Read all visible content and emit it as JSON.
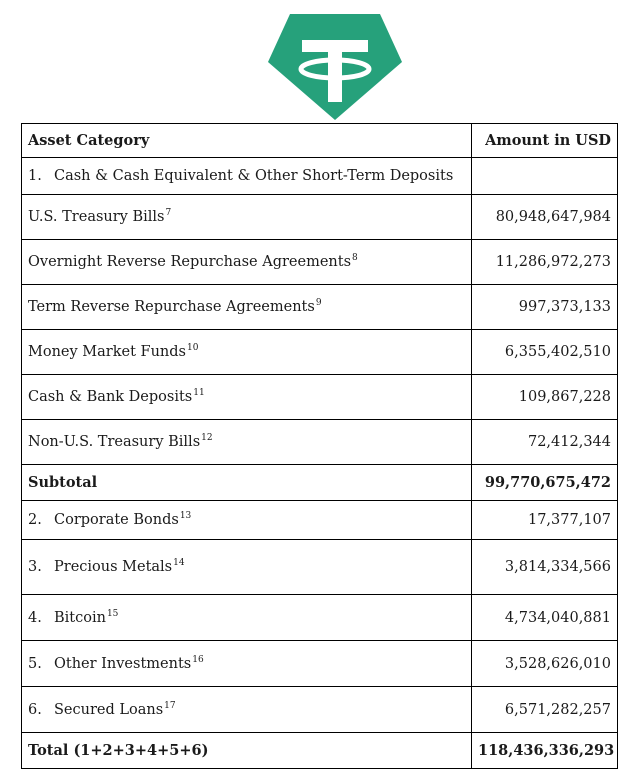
{
  "header": {
    "logo_icon": "tether-logo-icon",
    "logo_color": "#26A17B"
  },
  "table": {
    "col_category": "Asset Category",
    "col_amount": "Amount in USD",
    "cat1": {
      "num": "1.",
      "label": "Cash & Cash Equivalent & Other Short-Term Deposits",
      "amount": ""
    },
    "sub": [
      {
        "label": "U.S. Treasury Bills",
        "note": "7",
        "amount": "80,948,647,984"
      },
      {
        "label": "Overnight Reverse Repurchase Agreements",
        "note": "8",
        "amount": "11,286,972,273"
      },
      {
        "label": "Term Reverse Repurchase Agreements",
        "note": "9",
        "amount": "997,373,133"
      },
      {
        "label": "Money Market Funds",
        "note": "10",
        "amount": "6,355,402,510"
      },
      {
        "label": "Cash & Bank Deposits",
        "note": "11",
        "amount": "109,867,228"
      },
      {
        "label": "Non-U.S. Treasury Bills",
        "note": "12",
        "amount": "72,412,344"
      }
    ],
    "subtotal": {
      "label": "Subtotal",
      "amount": "99,770,675,472"
    },
    "cats": [
      {
        "num": "2.",
        "label": "Corporate Bonds",
        "note": "13",
        "amount": "17,377,107"
      },
      {
        "num": "3.",
        "label": "Precious Metals",
        "note": "14",
        "amount": "3,814,334,566"
      },
      {
        "num": "4.",
        "label": "Bitcoin",
        "note": "15",
        "amount": "4,734,040,881"
      },
      {
        "num": "5.",
        "label": "Other Investments",
        "note": "16",
        "amount": "3,528,626,010"
      },
      {
        "num": "6.",
        "label": "Secured Loans",
        "note": "17",
        "amount": "6,571,282,257"
      }
    ],
    "total": {
      "label": "Total (1+2+3+4+5+6)",
      "amount": "118,436,336,293"
    }
  }
}
